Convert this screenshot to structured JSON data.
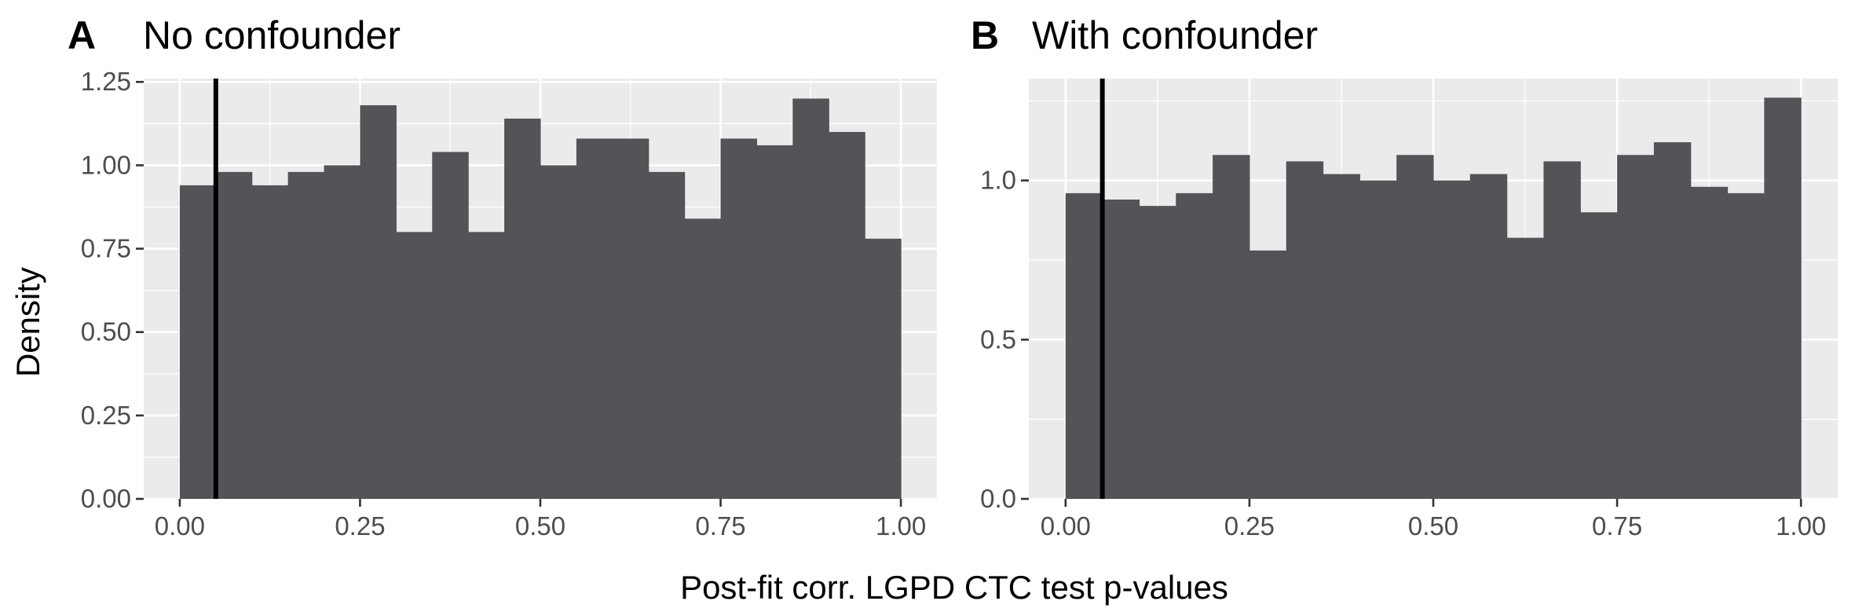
{
  "ylabel": "Density",
  "xlabel": "Post-fit corr. LGPD CTC test p-values",
  "colors": {
    "bar": "#555357",
    "panel_background": "#ebebeb",
    "grid": "#ffffff",
    "reference_line": "#000000"
  },
  "chart_data": [
    {
      "type": "bar",
      "tag": "A",
      "title": "No confounder",
      "xlim": [
        -0.05,
        1.05
      ],
      "ylim": [
        0,
        1.26
      ],
      "x_ticks": [
        0,
        0.25,
        0.5,
        0.75,
        1
      ],
      "x_tick_labels": [
        "0.00",
        "0.25",
        "0.50",
        "0.75",
        "1.00"
      ],
      "y_ticks": [
        0,
        0.25,
        0.5,
        0.75,
        1,
        1.25
      ],
      "y_tick_labels": [
        "0.00",
        "0.25",
        "0.50",
        "0.75",
        "1.00",
        "1.25"
      ],
      "grid": true,
      "bin_width": 0.05,
      "bin_starts": [
        0,
        0.05,
        0.1,
        0.15,
        0.2,
        0.25,
        0.3,
        0.35,
        0.4,
        0.45,
        0.5,
        0.55,
        0.6,
        0.65,
        0.7,
        0.75,
        0.8,
        0.85,
        0.9,
        0.95
      ],
      "values": [
        0.94,
        0.98,
        0.94,
        0.98,
        1.0,
        1.18,
        0.8,
        1.04,
        0.8,
        1.14,
        1.0,
        1.08,
        1.08,
        0.98,
        0.84,
        1.08,
        1.06,
        1.2,
        1.1,
        0.78
      ],
      "reference_x": 0.05
    },
    {
      "type": "bar",
      "tag": "B",
      "title": "With confounder",
      "xlim": [
        -0.05,
        1.05
      ],
      "ylim": [
        0,
        1.32
      ],
      "x_ticks": [
        0,
        0.25,
        0.5,
        0.75,
        1
      ],
      "x_tick_labels": [
        "0.00",
        "0.25",
        "0.50",
        "0.75",
        "1.00"
      ],
      "y_ticks": [
        0,
        0.5,
        1
      ],
      "y_tick_labels": [
        "0.0",
        "0.5",
        "1.0"
      ],
      "grid": true,
      "bin_width": 0.05,
      "bin_starts": [
        0,
        0.05,
        0.1,
        0.15,
        0.2,
        0.25,
        0.3,
        0.35,
        0.4,
        0.45,
        0.5,
        0.55,
        0.6,
        0.65,
        0.7,
        0.75,
        0.8,
        0.85,
        0.9,
        0.95
      ],
      "values": [
        0.96,
        0.94,
        0.92,
        0.96,
        1.08,
        0.78,
        1.06,
        1.02,
        1.0,
        1.08,
        1.0,
        1.02,
        0.82,
        1.06,
        0.9,
        1.08,
        1.12,
        0.98,
        0.96,
        1.26
      ],
      "reference_x": 0.05
    }
  ]
}
